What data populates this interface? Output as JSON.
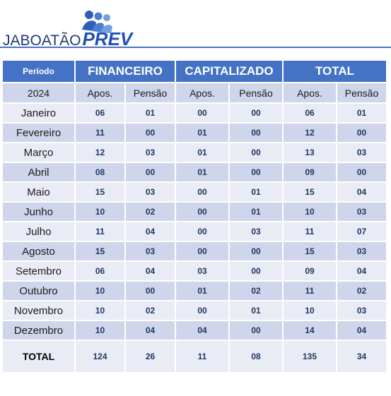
{
  "logo": {
    "main_text": "JABOATÃO",
    "accent_text": "PREV",
    "icon": "people-icon"
  },
  "colors": {
    "header_blue": "#4472c4",
    "band_dark": "#cfd5ea",
    "band_light": "#e9ebf5",
    "number_text": "#1f3864"
  },
  "table": {
    "header_row1": {
      "periodo": "Período",
      "groups": [
        "FINANCEIRO",
        "CAPITALIZADO",
        "TOTAL"
      ]
    },
    "header_row2": {
      "year": "2024",
      "subs": [
        "Apos.",
        "Pensão",
        "Apos.",
        "Pensão",
        "Apos.",
        "Pensão"
      ]
    },
    "rows": [
      {
        "month": "Janeiro",
        "values": [
          "06",
          "01",
          "00",
          "00",
          "06",
          "01"
        ]
      },
      {
        "month": "Fevereiro",
        "values": [
          "11",
          "00",
          "01",
          "00",
          "12",
          "00"
        ]
      },
      {
        "month": "Março",
        "values": [
          "12",
          "03",
          "01",
          "00",
          "13",
          "03"
        ]
      },
      {
        "month": "Abril",
        "values": [
          "08",
          "00",
          "01",
          "00",
          "09",
          "00"
        ]
      },
      {
        "month": "Maio",
        "values": [
          "15",
          "03",
          "00",
          "01",
          "15",
          "04"
        ]
      },
      {
        "month": "Junho",
        "values": [
          "10",
          "02",
          "00",
          "01",
          "10",
          "03"
        ]
      },
      {
        "month": "Julho",
        "values": [
          "11",
          "04",
          "00",
          "03",
          "11",
          "07"
        ]
      },
      {
        "month": "Agosto",
        "values": [
          "15",
          "03",
          "00",
          "00",
          "15",
          "03"
        ]
      },
      {
        "month": "Setembro",
        "values": [
          "06",
          "04",
          "03",
          "00",
          "09",
          "04"
        ]
      },
      {
        "month": "Outubro",
        "values": [
          "10",
          "00",
          "01",
          "02",
          "11",
          "02"
        ]
      },
      {
        "month": "Novembro",
        "values": [
          "10",
          "02",
          "00",
          "01",
          "10",
          "03"
        ]
      },
      {
        "month": "Dezembro",
        "values": [
          "10",
          "04",
          "04",
          "00",
          "14",
          "04"
        ]
      }
    ],
    "total_row": {
      "label": "TOTAL",
      "values": [
        "124",
        "26",
        "11",
        "08",
        "135",
        "34"
      ]
    }
  }
}
